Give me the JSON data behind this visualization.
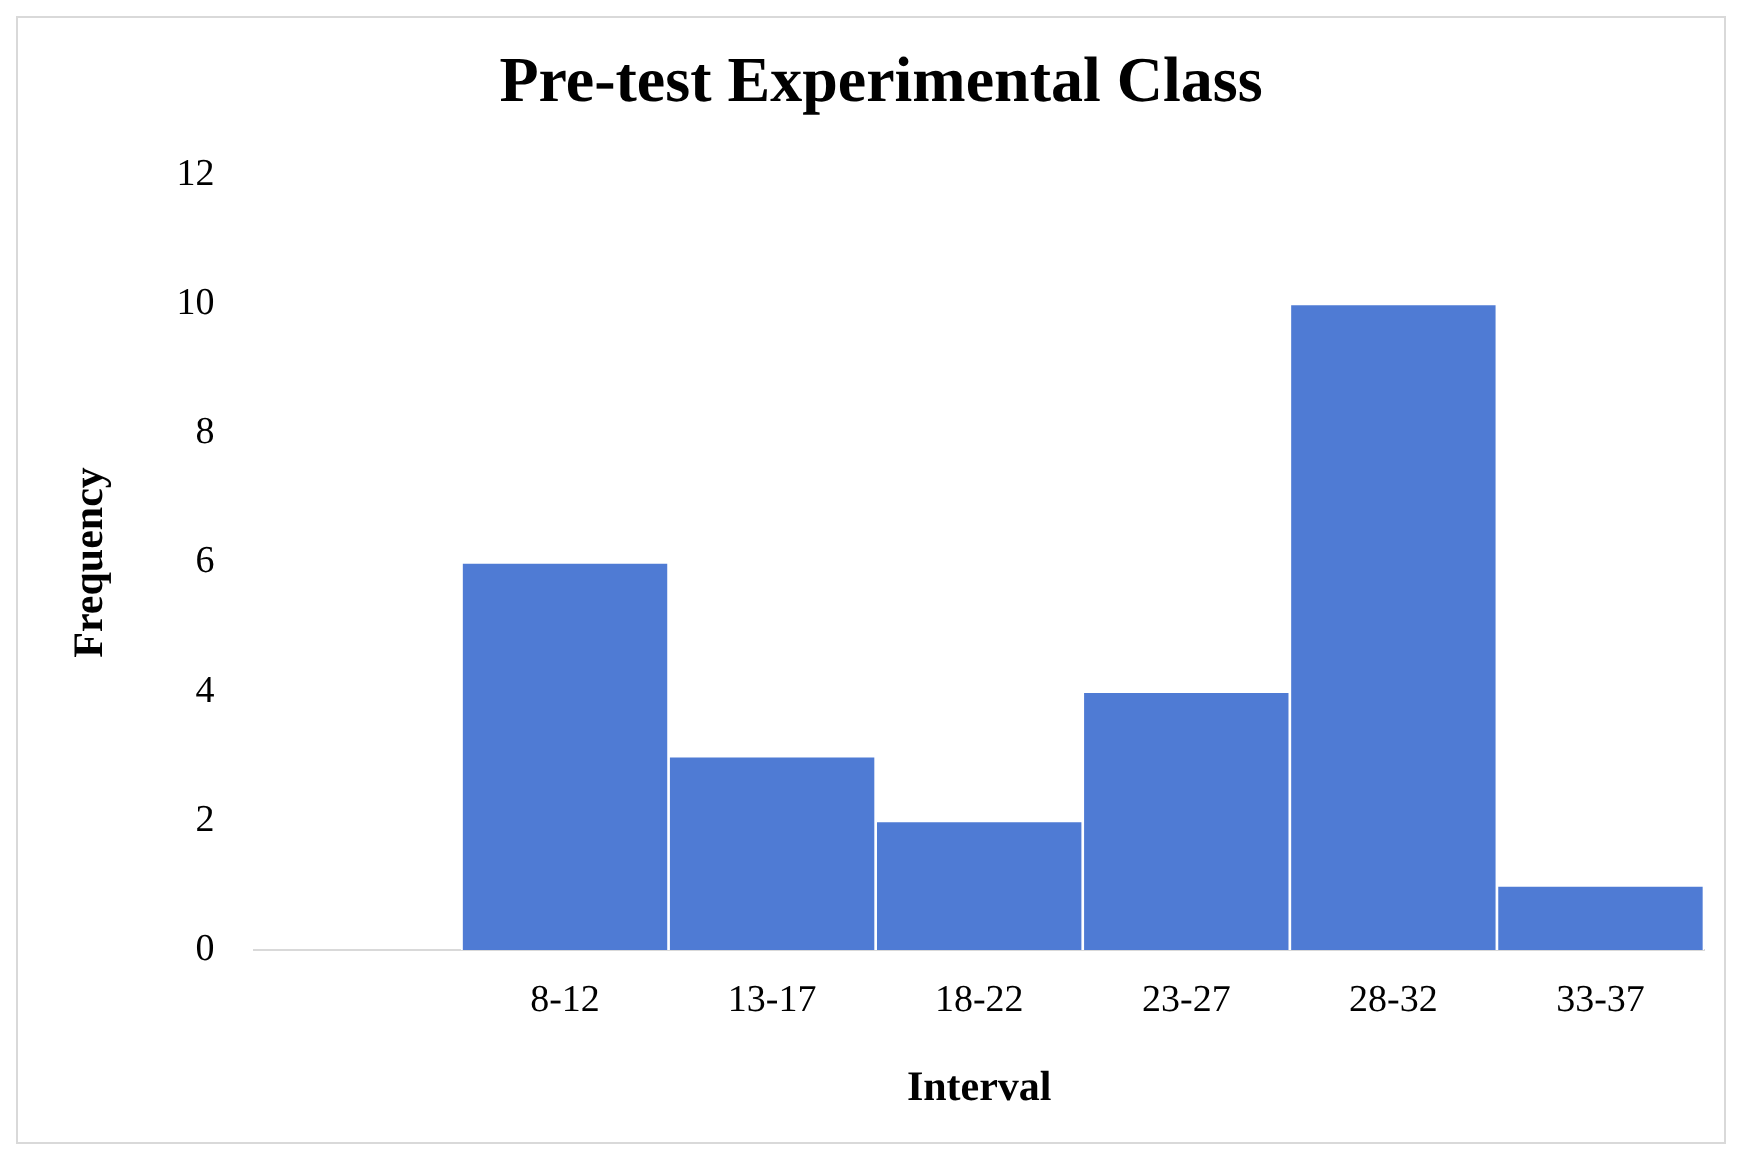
{
  "chart_data": {
    "type": "bar",
    "title": "Pre-test Experimental Class",
    "xlabel": "Interval",
    "ylabel": "Frequency",
    "categories": [
      null,
      "8-12",
      "13-17",
      "18-22",
      "23-27",
      "28-32",
      "33-37"
    ],
    "values": [
      null,
      6,
      3,
      2,
      4,
      10,
      1
    ],
    "color": "#4f7bd4",
    "ylim": [
      0,
      12
    ],
    "yticks": [
      0,
      2,
      4,
      6,
      8,
      10,
      12
    ],
    "grid": false,
    "legend": false
  }
}
